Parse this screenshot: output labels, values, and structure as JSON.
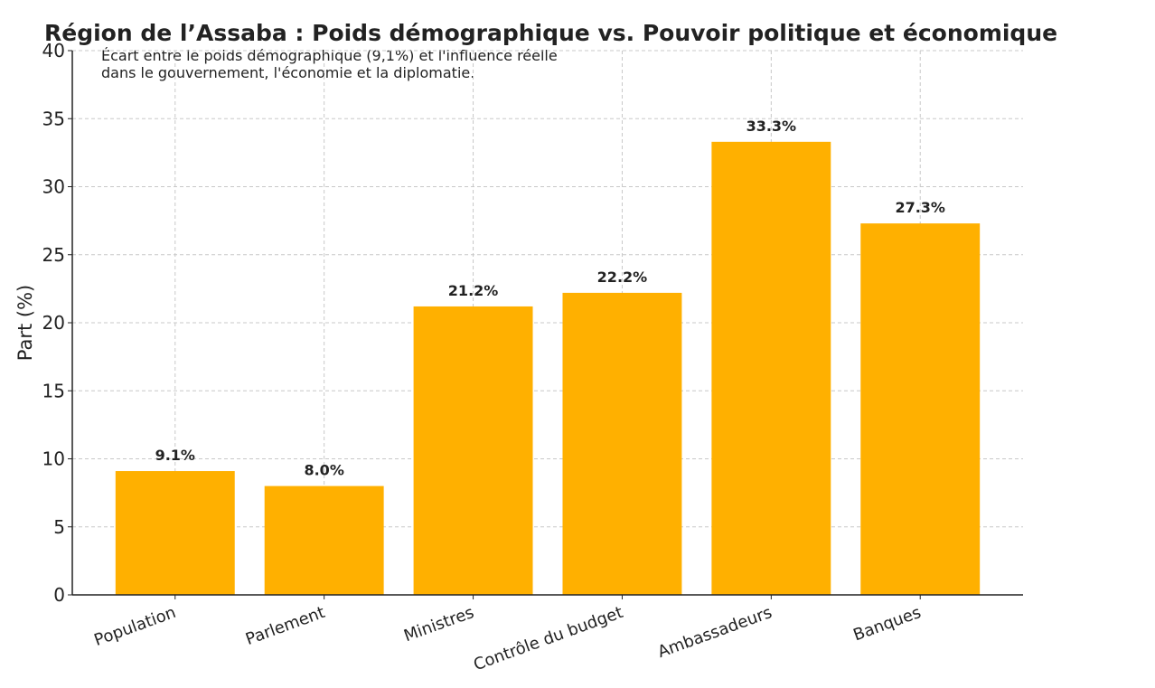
{
  "chart_data": {
    "type": "bar",
    "title": "Région de l’Assaba : Poids démographique vs. Pouvoir politique et économique",
    "subtitle": [
      "Écart entre le poids démographique (9,1%) et l'influence réelle",
      "dans le gouvernement, l'économie et la diplomatie."
    ],
    "y_label": "Part (%)",
    "categories": [
      "Population",
      "Parlement",
      "Ministres",
      "Contrôle du budget",
      "Ambassadeurs",
      "Banques"
    ],
    "values": [
      9.1,
      8.0,
      21.2,
      22.2,
      33.3,
      27.3
    ],
    "value_labels": [
      "9.1%",
      "8.0%",
      "21.2%",
      "22.2%",
      "33.3%",
      "27.3%"
    ],
    "color": "#ffb000",
    "ylim": [
      0,
      40
    ],
    "yticks": [
      0,
      5,
      10,
      15,
      20,
      25,
      30,
      35,
      40
    ],
    "grid": true
  }
}
